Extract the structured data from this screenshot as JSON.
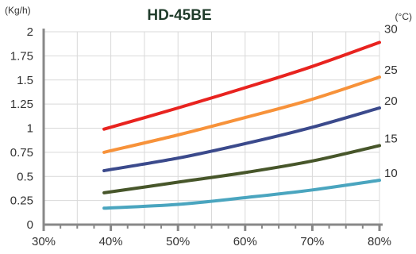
{
  "chart_data": {
    "type": "line",
    "title": "HD-45BE",
    "ylabel": "(Kg/h)",
    "y2label": "(°C)",
    "xlabel": "",
    "x_ticks": [
      "30%",
      "40%",
      "50%",
      "60%",
      "70%",
      "80%"
    ],
    "x_tick_values": [
      30,
      40,
      50,
      60,
      70,
      80
    ],
    "y_ticks": [
      "0",
      "0.25",
      "0.5",
      "0.75",
      "1",
      "1.25",
      "1.5",
      "1.75",
      "2"
    ],
    "y_tick_values": [
      0,
      0.25,
      0.5,
      0.75,
      1,
      1.25,
      1.5,
      1.75,
      2
    ],
    "xlim": [
      30,
      80
    ],
    "ylim": [
      0,
      2
    ],
    "grid": true,
    "series": [
      {
        "name": "30",
        "color": "#e8231f",
        "x": [
          39,
          50,
          60,
          70,
          80
        ],
        "values": [
          0.99,
          1.21,
          1.42,
          1.64,
          1.89
        ]
      },
      {
        "name": "25",
        "color": "#f7923a",
        "x": [
          39,
          50,
          60,
          70,
          80
        ],
        "values": [
          0.75,
          0.93,
          1.11,
          1.3,
          1.53
        ]
      },
      {
        "name": "20",
        "color": "#3b4a8c",
        "x": [
          39,
          50,
          60,
          70,
          80
        ],
        "values": [
          0.56,
          0.69,
          0.84,
          1.01,
          1.21
        ]
      },
      {
        "name": "15",
        "color": "#47562a",
        "x": [
          39,
          50,
          60,
          70,
          80
        ],
        "values": [
          0.33,
          0.44,
          0.54,
          0.66,
          0.82
        ]
      },
      {
        "name": "10",
        "color": "#4aa5bf",
        "x": [
          39,
          50,
          60,
          70,
          80
        ],
        "values": [
          0.17,
          0.21,
          0.28,
          0.36,
          0.46
        ]
      }
    ]
  }
}
